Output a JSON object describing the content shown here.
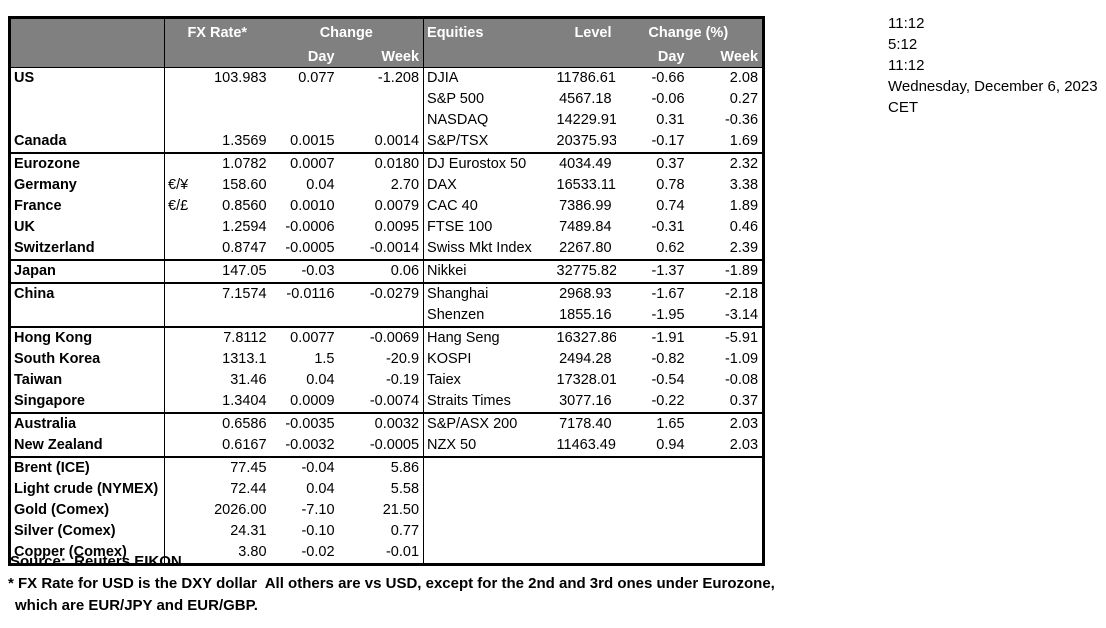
{
  "colors": {
    "header_bg": "#808080",
    "header_text": "#ffffff",
    "border": "#000000",
    "body_text": "#000000",
    "background": "#ffffff"
  },
  "timestamps": {
    "lines": [
      "11:12",
      "5:12",
      "11:12",
      "Wednesday, December 6, 2023",
      "CET"
    ]
  },
  "table": {
    "fx_header": {
      "rate": "FX Rate*",
      "change": "Change",
      "day": "Day",
      "week": "Week"
    },
    "eq_header": {
      "title": "Equities",
      "level": "Level",
      "change": "Change (%)",
      "day": "Day",
      "week": "Week"
    },
    "rows": [
      {
        "label": "US",
        "indent": false,
        "sym": "",
        "rate": "103.983",
        "chg_day": "0.077",
        "chg_week": "-1.208",
        "equity": "DJIA",
        "level": "11786.61",
        "pct_day": "-0.66",
        "pct_week": "2.08",
        "group_end": false
      },
      {
        "label": "",
        "indent": false,
        "sym": "",
        "rate": "",
        "chg_day": "",
        "chg_week": "",
        "equity": "S&P 500",
        "level": "4567.18",
        "pct_day": "-0.06",
        "pct_week": "0.27",
        "group_end": false
      },
      {
        "label": "",
        "indent": false,
        "sym": "",
        "rate": "",
        "chg_day": "",
        "chg_week": "",
        "equity": "NASDAQ",
        "level": "14229.91",
        "pct_day": "0.31",
        "pct_week": "-0.36",
        "group_end": false
      },
      {
        "label": "Canada",
        "indent": false,
        "sym": "",
        "rate": "1.3569",
        "chg_day": "0.0015",
        "chg_week": "0.0014",
        "equity": "S&P/TSX",
        "level": "20375.93",
        "pct_day": "-0.17",
        "pct_week": "1.69",
        "group_end": true
      },
      {
        "label": "Eurozone",
        "indent": false,
        "sym": "",
        "rate": "1.0782",
        "chg_day": "0.0007",
        "chg_week": "0.0180",
        "equity": "DJ Eurostox 50",
        "level": "4034.49",
        "pct_day": "0.37",
        "pct_week": "2.32",
        "group_end": false
      },
      {
        "label": "Germany",
        "indent": true,
        "sym": "€/¥",
        "rate": "158.60",
        "chg_day": "0.04",
        "chg_week": "2.70",
        "equity": "DAX",
        "level": "16533.11",
        "pct_day": "0.78",
        "pct_week": "3.38",
        "group_end": false
      },
      {
        "label": "France",
        "indent": true,
        "sym": "€/£",
        "rate": "0.8560",
        "chg_day": "0.0010",
        "chg_week": "0.0079",
        "equity": "CAC 40",
        "level": "7386.99",
        "pct_day": "0.74",
        "pct_week": "1.89",
        "group_end": false
      },
      {
        "label": "UK",
        "indent": false,
        "sym": "",
        "rate": "1.2594",
        "chg_day": "-0.0006",
        "chg_week": "0.0095",
        "equity": "FTSE 100",
        "level": "7489.84",
        "pct_day": "-0.31",
        "pct_week": "0.46",
        "group_end": false
      },
      {
        "label": "Switzerland",
        "indent": false,
        "sym": "",
        "rate": "0.8747",
        "chg_day": "-0.0005",
        "chg_week": "-0.0014",
        "equity": "Swiss Mkt Index",
        "level": "2267.80",
        "pct_day": "0.62",
        "pct_week": "2.39",
        "group_end": true
      },
      {
        "label": "Japan",
        "indent": false,
        "sym": "",
        "rate": "147.05",
        "chg_day": "-0.03",
        "chg_week": "0.06",
        "equity": "Nikkei",
        "level": "32775.82",
        "pct_day": "-1.37",
        "pct_week": "-1.89",
        "group_end": true
      },
      {
        "label": "China",
        "indent": false,
        "sym": "",
        "rate": "7.1574",
        "chg_day": "-0.0116",
        "chg_week": "-0.0279",
        "equity": "Shanghai",
        "level": "2968.93",
        "pct_day": "-1.67",
        "pct_week": "-2.18",
        "group_end": false
      },
      {
        "label": "",
        "indent": false,
        "sym": "",
        "rate": "",
        "chg_day": "",
        "chg_week": "",
        "equity": "Shenzen",
        "level": "1855.16",
        "pct_day": "-1.95",
        "pct_week": "-3.14",
        "group_end": true
      },
      {
        "label": "Hong Kong",
        "indent": false,
        "sym": "",
        "rate": "7.8112",
        "chg_day": "0.0077",
        "chg_week": "-0.0069",
        "equity": "Hang Seng",
        "level": "16327.86",
        "pct_day": "-1.91",
        "pct_week": "-5.91",
        "group_end": false
      },
      {
        "label": "South Korea",
        "indent": false,
        "sym": "",
        "rate": "1313.1",
        "chg_day": "1.5",
        "chg_week": "-20.9",
        "equity": "KOSPI",
        "level": "2494.28",
        "pct_day": "-0.82",
        "pct_week": "-1.09",
        "group_end": false
      },
      {
        "label": "Taiwan",
        "indent": false,
        "sym": "",
        "rate": "31.46",
        "chg_day": "0.04",
        "chg_week": "-0.19",
        "equity": "Taiex",
        "level": "17328.01",
        "pct_day": "-0.54",
        "pct_week": "-0.08",
        "group_end": false
      },
      {
        "label": "Singapore",
        "indent": false,
        "sym": "",
        "rate": "1.3404",
        "chg_day": "0.0009",
        "chg_week": "-0.0074",
        "equity": "Straits Times",
        "level": "3077.16",
        "pct_day": "-0.22",
        "pct_week": "0.37",
        "group_end": true
      },
      {
        "label": "Australia",
        "indent": false,
        "sym": "",
        "rate": "0.6586",
        "chg_day": "-0.0035",
        "chg_week": "0.0032",
        "equity": "S&P/ASX  200",
        "level": "7178.40",
        "pct_day": "1.65",
        "pct_week": "2.03",
        "group_end": false
      },
      {
        "label": "New Zealand",
        "indent": false,
        "sym": "",
        "rate": "0.6167",
        "chg_day": "-0.0032",
        "chg_week": "-0.0005",
        "equity": "NZX 50",
        "level": "11463.49",
        "pct_day": "0.94",
        "pct_week": "2.03",
        "group_end": true
      },
      {
        "label": "Brent (ICE)",
        "indent": false,
        "sym": "",
        "rate": "77.45",
        "chg_day": "-0.04",
        "chg_week": "5.86",
        "equity": "",
        "level": "",
        "pct_day": "",
        "pct_week": "",
        "group_end": false
      },
      {
        "label": "Light crude (NYMEX)",
        "indent": false,
        "sym": "",
        "rate": "72.44",
        "chg_day": "0.04",
        "chg_week": "5.58",
        "equity": "",
        "level": "",
        "pct_day": "",
        "pct_week": "",
        "group_end": false
      },
      {
        "label": "Gold (Comex)",
        "indent": false,
        "sym": "",
        "rate": "2026.00",
        "chg_day": "-7.10",
        "chg_week": "21.50",
        "equity": "",
        "level": "",
        "pct_day": "",
        "pct_week": "",
        "group_end": false
      },
      {
        "label": "Silver (Comex)",
        "indent": false,
        "sym": "",
        "rate": "24.31",
        "chg_day": "-0.10",
        "chg_week": "0.77",
        "equity": "",
        "level": "",
        "pct_day": "",
        "pct_week": "",
        "group_end": false
      },
      {
        "label": "Copper (Comex)",
        "indent": false,
        "sym": "",
        "rate": "3.80",
        "chg_day": "-0.02",
        "chg_week": "-0.01",
        "equity": "",
        "level": "",
        "pct_day": "",
        "pct_week": "",
        "group_end": false
      }
    ]
  },
  "footer": {
    "source": "Source:  Reuters EIKON.",
    "note1": "* FX Rate for USD is the DXY dollar  All others are vs USD, except for the 2nd and 3rd ones under Eurozone,",
    "note2": "which are EUR/JPY and EUR/GBP."
  }
}
